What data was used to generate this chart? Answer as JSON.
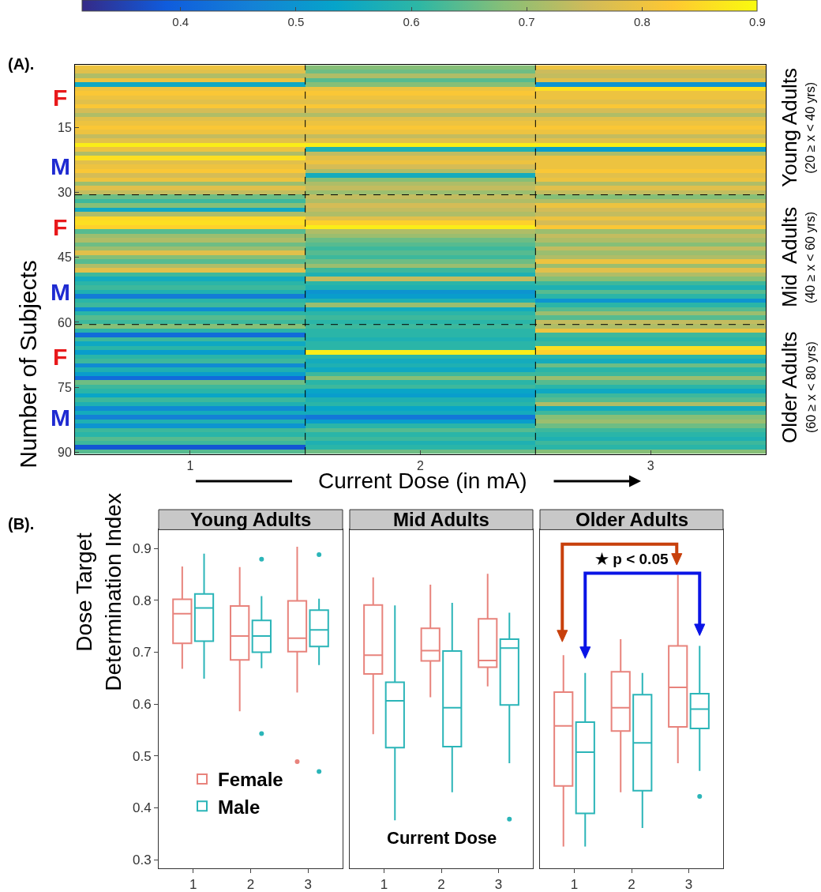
{
  "chart_data": [
    {
      "type": "heatmap",
      "xlabel": "Current Dose (in mA)",
      "ylabel": "Number of Subjects",
      "x": [
        1,
        2,
        3
      ],
      "xlim": [
        0.5,
        3.5
      ],
      "xticks": [
        1,
        2,
        3
      ],
      "ylim": [
        90.5,
        0.5
      ],
      "yticks": [
        15,
        30,
        45,
        60,
        75,
        90
      ],
      "clim": [
        0.315,
        0.9
      ],
      "cticks": [
        0.4,
        0.5,
        0.6,
        0.7,
        0.8,
        0.9
      ],
      "ref_lines": [
        {
          "axis": "y",
          "value": 30.5,
          "line_style": "dashed",
          "color": "#000000"
        },
        {
          "axis": "y",
          "value": 60.5,
          "line_style": "dashed",
          "color": "#000000"
        },
        {
          "axis": "x",
          "value": 1.5,
          "line_style": "dashed",
          "color": "#000000"
        },
        {
          "axis": "x",
          "value": 2.5,
          "line_style": "dashed",
          "color": "#000000"
        }
      ],
      "annotations": [
        "(A).",
        "F",
        "M",
        "F",
        "M",
        "F",
        "M",
        "Young Adults",
        "(20 ≥ x < 40 yrs)",
        "Mid  Adults",
        "(40 ≥ x < 60 yrs)",
        "Older Adults",
        "(60 ≥ x < 80 yrs)"
      ],
      "cells": [
        [
          0.8,
          0.68,
          0.8
        ],
        [
          0.78,
          0.66,
          0.75
        ],
        [
          0.72,
          0.72,
          0.74
        ],
        [
          0.8,
          0.64,
          0.78
        ],
        [
          0.55,
          0.68,
          0.5
        ],
        [
          0.8,
          0.8,
          0.86
        ],
        [
          0.82,
          0.82,
          0.8
        ],
        [
          0.8,
          0.8,
          0.8
        ],
        [
          0.78,
          0.78,
          0.78
        ],
        [
          0.82,
          0.82,
          0.82
        ],
        [
          0.76,
          0.76,
          0.76
        ],
        [
          0.72,
          0.72,
          0.72
        ],
        [
          0.78,
          0.78,
          0.78
        ],
        [
          0.8,
          0.8,
          0.8
        ],
        [
          0.82,
          0.82,
          0.82
        ],
        [
          0.8,
          0.8,
          0.8
        ],
        [
          0.74,
          0.74,
          0.74
        ],
        [
          0.78,
          0.78,
          0.78
        ],
        [
          0.88,
          0.88,
          0.88
        ],
        [
          0.8,
          0.58,
          0.52
        ],
        [
          0.72,
          0.74,
          0.72
        ],
        [
          0.86,
          0.78,
          0.8
        ],
        [
          0.78,
          0.8,
          0.8
        ],
        [
          0.8,
          0.76,
          0.8
        ],
        [
          0.82,
          0.72,
          0.82
        ],
        [
          0.76,
          0.56,
          0.78
        ],
        [
          0.8,
          0.68,
          0.8
        ],
        [
          0.7,
          0.72,
          0.72
        ],
        [
          0.78,
          0.74,
          0.78
        ],
        [
          0.74,
          0.7,
          0.74
        ],
        [
          0.66,
          0.74,
          0.68
        ],
        [
          0.62,
          0.72,
          0.72
        ],
        [
          0.68,
          0.76,
          0.8
        ],
        [
          0.55,
          0.74,
          0.76
        ],
        [
          0.72,
          0.72,
          0.74
        ],
        [
          0.85,
          0.78,
          0.8
        ],
        [
          0.86,
          0.84,
          0.76
        ],
        [
          0.84,
          0.88,
          0.82
        ],
        [
          0.64,
          0.72,
          0.7
        ],
        [
          0.7,
          0.7,
          0.74
        ],
        [
          0.72,
          0.66,
          0.72
        ],
        [
          0.66,
          0.64,
          0.68
        ],
        [
          0.7,
          0.62,
          0.74
        ],
        [
          0.78,
          0.64,
          0.7
        ],
        [
          0.68,
          0.62,
          0.72
        ],
        [
          0.64,
          0.66,
          0.8
        ],
        [
          0.72,
          0.7,
          0.7
        ],
        [
          0.78,
          0.62,
          0.78
        ],
        [
          0.62,
          0.58,
          0.72
        ],
        [
          0.56,
          0.74,
          0.68
        ],
        [
          0.6,
          0.6,
          0.62
        ],
        [
          0.62,
          0.58,
          0.58
        ],
        [
          0.58,
          0.5,
          0.64
        ],
        [
          0.45,
          0.52,
          0.6
        ],
        [
          0.6,
          0.58,
          0.5
        ],
        [
          0.62,
          0.7,
          0.6
        ],
        [
          0.48,
          0.56,
          0.64
        ],
        [
          0.6,
          0.6,
          0.7
        ],
        [
          0.64,
          0.62,
          0.64
        ],
        [
          0.62,
          0.6,
          0.74
        ],
        [
          0.68,
          0.62,
          0.72
        ],
        [
          0.6,
          0.6,
          0.8
        ],
        [
          0.42,
          0.6,
          0.62
        ],
        [
          0.62,
          0.58,
          0.6
        ],
        [
          0.55,
          0.6,
          0.62
        ],
        [
          0.6,
          0.6,
          0.86
        ],
        [
          0.52,
          0.88,
          0.84
        ],
        [
          0.6,
          0.6,
          0.6
        ],
        [
          0.62,
          0.56,
          0.56
        ],
        [
          0.48,
          0.58,
          0.66
        ],
        [
          0.58,
          0.55,
          0.6
        ],
        [
          0.52,
          0.62,
          0.62
        ],
        [
          0.42,
          0.68,
          0.7
        ],
        [
          0.66,
          0.6,
          0.64
        ],
        [
          0.62,
          0.62,
          0.6
        ],
        [
          0.6,
          0.54,
          0.55
        ],
        [
          0.54,
          0.52,
          0.62
        ],
        [
          0.62,
          0.58,
          0.64
        ],
        [
          0.58,
          0.6,
          0.72
        ],
        [
          0.48,
          0.54,
          0.56
        ],
        [
          0.56,
          0.56,
          0.62
        ],
        [
          0.46,
          0.44,
          0.68
        ],
        [
          0.58,
          0.52,
          0.7
        ],
        [
          0.5,
          0.6,
          0.66
        ],
        [
          0.62,
          0.64,
          0.62
        ],
        [
          0.6,
          0.6,
          0.6
        ],
        [
          0.64,
          0.62,
          0.58
        ],
        [
          0.62,
          0.58,
          0.62
        ],
        [
          0.38,
          0.6,
          0.6
        ],
        [
          0.64,
          0.66,
          0.68
        ]
      ]
    },
    {
      "type": "box",
      "title": "Young Adults",
      "ylabel": "Dose Target\nDetermination Index",
      "categories": [
        "1",
        "2",
        "3"
      ],
      "ylim": [
        0.284,
        0.936
      ],
      "yticks": [
        0.3,
        0.4,
        0.5,
        0.6,
        0.7,
        0.8,
        0.9
      ],
      "legend": "bottom left",
      "annotations": [
        "(B)."
      ],
      "series": [
        {
          "name": "Female",
          "color": "#e8837c",
          "boxes": [
            {
              "low": 0.668,
              "q1": 0.717,
              "median": 0.774,
              "q3": 0.802,
              "high": 0.865
            },
            {
              "low": 0.586,
              "q1": 0.685,
              "median": 0.731,
              "q3": 0.789,
              "high": 0.864
            },
            {
              "low": 0.622,
              "q1": 0.701,
              "median": 0.727,
              "q3": 0.799,
              "high": 0.903,
              "outliers": [
                0.489
              ]
            }
          ]
        },
        {
          "name": "Male",
          "color": "#2bb5b8",
          "boxes": [
            {
              "low": 0.649,
              "q1": 0.721,
              "median": 0.785,
              "q3": 0.812,
              "high": 0.89
            },
            {
              "low": 0.669,
              "q1": 0.7,
              "median": 0.731,
              "q3": 0.761,
              "high": 0.808,
              "outliers": [
                0.879,
                0.543
              ]
            },
            {
              "low": 0.675,
              "q1": 0.711,
              "median": 0.743,
              "q3": 0.781,
              "high": 0.803,
              "outliers": [
                0.888,
                0.47
              ]
            }
          ]
        }
      ]
    },
    {
      "type": "box",
      "title": "Mid Adults",
      "xlabel": "Current Dose",
      "categories": [
        "1",
        "2",
        "3"
      ],
      "ylim": [
        0.284,
        0.936
      ],
      "yticks": [
        0.3,
        0.4,
        0.5,
        0.6,
        0.7,
        0.8,
        0.9
      ],
      "tick_labels": "x",
      "series": [
        {
          "color": "#e8837c",
          "boxes": [
            {
              "low": 0.542,
              "q1": 0.658,
              "median": 0.694,
              "q3": 0.791,
              "high": 0.844
            },
            {
              "low": 0.613,
              "q1": 0.683,
              "median": 0.703,
              "q3": 0.746,
              "high": 0.83
            },
            {
              "low": 0.634,
              "q1": 0.671,
              "median": 0.684,
              "q3": 0.764,
              "high": 0.851
            }
          ]
        },
        {
          "color": "#2bb5b8",
          "boxes": [
            {
              "low": 0.376,
              "q1": 0.516,
              "median": 0.606,
              "q3": 0.642,
              "high": 0.79
            },
            {
              "low": 0.43,
              "q1": 0.518,
              "median": 0.593,
              "q3": 0.702,
              "high": 0.795
            },
            {
              "low": 0.486,
              "q1": 0.598,
              "median": 0.708,
              "q3": 0.725,
              "high": 0.776,
              "outliers": [
                0.378
              ]
            }
          ]
        }
      ]
    },
    {
      "type": "box",
      "title": "Older Adults",
      "categories": [
        "1",
        "2",
        "3"
      ],
      "ylim": [
        0.284,
        0.936
      ],
      "yticks": [
        0.3,
        0.4,
        0.5,
        0.6,
        0.7,
        0.8,
        0.9
      ],
      "tick_labels": "x",
      "annotations": [
        "★ p < 0.05"
      ],
      "series": [
        {
          "color": "#e8837c",
          "boxes": [
            {
              "low": 0.325,
              "q1": 0.442,
              "median": 0.558,
              "q3": 0.623,
              "high": 0.694
            },
            {
              "low": 0.43,
              "q1": 0.548,
              "median": 0.593,
              "q3": 0.662,
              "high": 0.725
            },
            {
              "low": 0.486,
              "q1": 0.556,
              "median": 0.632,
              "q3": 0.712,
              "high": 0.849
            }
          ]
        },
        {
          "color": "#2bb5b8",
          "boxes": [
            {
              "low": 0.325,
              "q1": 0.389,
              "median": 0.507,
              "q3": 0.565,
              "high": 0.66
            },
            {
              "low": 0.361,
              "q1": 0.433,
              "median": 0.525,
              "q3": 0.618,
              "high": 0.66
            },
            {
              "low": 0.471,
              "q1": 0.553,
              "median": 0.59,
              "q3": 0.62,
              "high": 0.712,
              "outliers": [
                0.422
              ]
            }
          ]
        }
      ]
    }
  ]
}
